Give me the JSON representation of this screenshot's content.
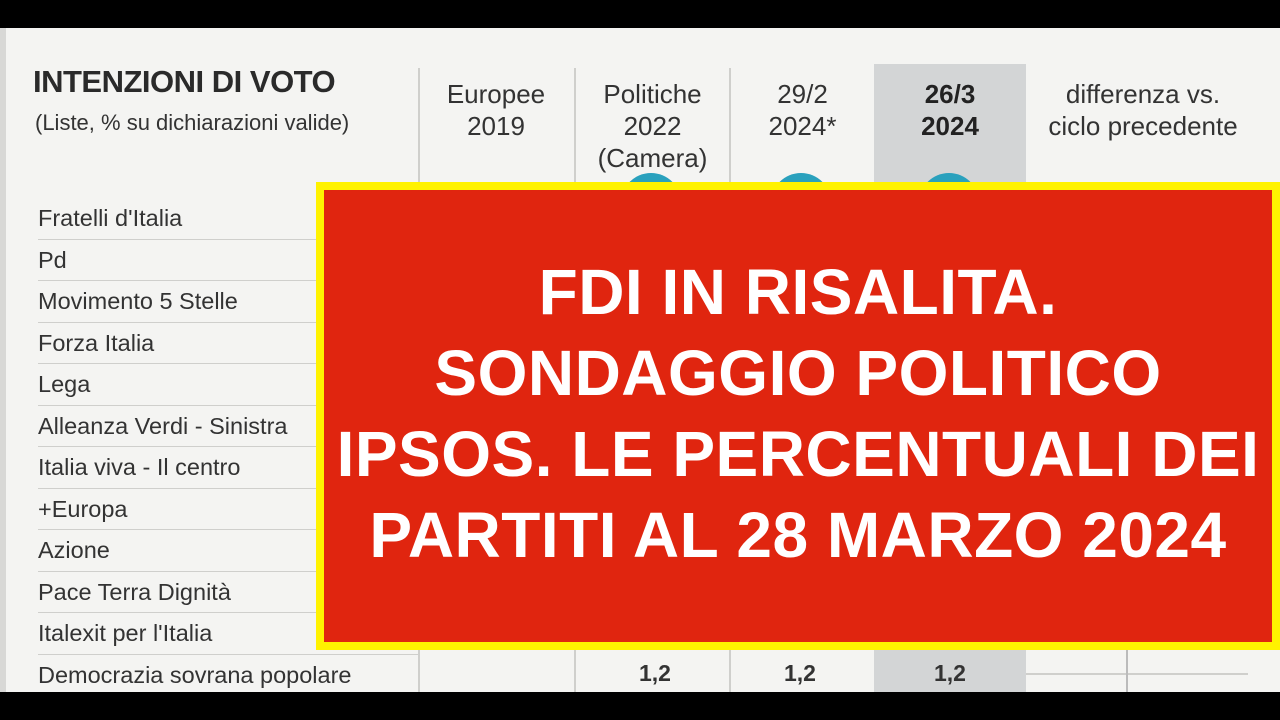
{
  "table": {
    "title": "INTENZIONI DI VOTO",
    "subtitle": "(Liste, % su dichiarazioni valide)",
    "columns": [
      {
        "line1": "Europee",
        "line2": "2019",
        "line3": ""
      },
      {
        "line1": "Politiche",
        "line2": "2022",
        "line3": "(Camera)"
      },
      {
        "line1": "29/2",
        "line2": "2024*",
        "line3": ""
      },
      {
        "line1": "26/3",
        "line2": "2024",
        "line3": ""
      },
      {
        "line1": "differenza vs.",
        "line2": "ciclo precedente",
        "line3": ""
      }
    ],
    "parties": [
      "Fratelli d'Italia",
      "Pd",
      "Movimento 5 Stelle",
      "Forza Italia",
      "Lega",
      "Alleanza Verdi - Sinistra",
      "Italia viva - Il centro",
      "+Europa",
      "Azione",
      "Pace Terra Dignità",
      "Italexit per l'Italia",
      "Democrazia sovrana popolare"
    ],
    "last_row_values": [
      "1,2",
      "1,2",
      "1,2"
    ],
    "colors": {
      "highlight_column": "#d3d5d6",
      "circle": "#2aa1bd"
    }
  },
  "banner": {
    "headline": "FDI IN RISALITA. SONDAGGIO POLITICO IPSOS. LE PERCENTUALI DEI PARTITI AL 28 MARZO 2024",
    "colors": {
      "background": "#e0250f",
      "border": "#fff200",
      "text": "#ffffff"
    }
  }
}
